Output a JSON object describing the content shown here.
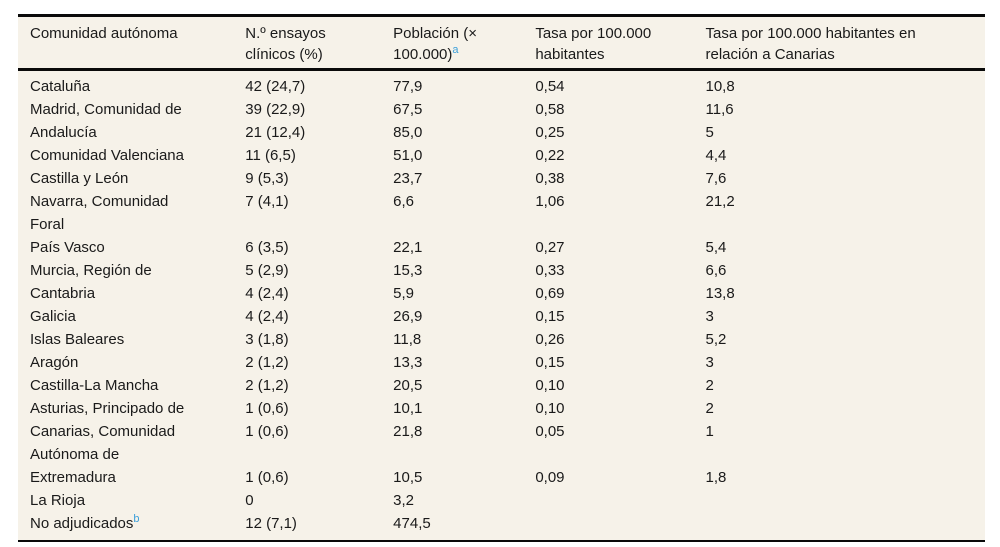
{
  "colors": {
    "table_background": "#f6f2e9",
    "border": "#0a0a0a",
    "text": "#1a1a1a",
    "footnote_link": "#3da0da"
  },
  "table": {
    "header": {
      "comunidad": "Comunidad autónoma",
      "ensayos": "N.º ensayos\nclínicos (%)",
      "poblacion": "Población (×\n100.000)",
      "poblacion_footnote": "a",
      "tasa": "Tasa por 100.000\nhabitantes",
      "tasa_canarias": "Tasa por 100.000 habitantes en\nrelación a Canarias"
    },
    "rows": [
      {
        "comunidad": "Cataluña",
        "footnote": "",
        "ensayos": "42 (24,7)",
        "poblacion": "77,9",
        "tasa": "0,54",
        "tasa_canarias": "10,8"
      },
      {
        "comunidad": "Madrid, Comunidad de",
        "footnote": "",
        "ensayos": "39 (22,9)",
        "poblacion": "67,5",
        "tasa": "0,58",
        "tasa_canarias": "11,6"
      },
      {
        "comunidad": "Andalucía",
        "footnote": "",
        "ensayos": "21 (12,4)",
        "poblacion": "85,0",
        "tasa": "0,25",
        "tasa_canarias": "5"
      },
      {
        "comunidad": "Comunidad Valenciana",
        "footnote": "",
        "ensayos": "11 (6,5)",
        "poblacion": "51,0",
        "tasa": "0,22",
        "tasa_canarias": "4,4"
      },
      {
        "comunidad": "Castilla y León",
        "footnote": "",
        "ensayos": "9 (5,3)",
        "poblacion": "23,7",
        "tasa": "0,38",
        "tasa_canarias": "7,6"
      },
      {
        "comunidad": "Navarra, Comunidad\nForal",
        "footnote": "",
        "ensayos": "7 (4,1)",
        "poblacion": "6,6",
        "tasa": "1,06",
        "tasa_canarias": "21,2"
      },
      {
        "comunidad": "País Vasco",
        "footnote": "",
        "ensayos": "6 (3,5)",
        "poblacion": "22,1",
        "tasa": "0,27",
        "tasa_canarias": "5,4"
      },
      {
        "comunidad": "Murcia, Región de",
        "footnote": "",
        "ensayos": "5 (2,9)",
        "poblacion": "15,3",
        "tasa": "0,33",
        "tasa_canarias": "6,6"
      },
      {
        "comunidad": "Cantabria",
        "footnote": "",
        "ensayos": "4 (2,4)",
        "poblacion": "5,9",
        "tasa": "0,69",
        "tasa_canarias": "13,8"
      },
      {
        "comunidad": "Galicia",
        "footnote": "",
        "ensayos": "4 (2,4)",
        "poblacion": "26,9",
        "tasa": "0,15",
        "tasa_canarias": "3"
      },
      {
        "comunidad": "Islas Baleares",
        "footnote": "",
        "ensayos": "3 (1,8)",
        "poblacion": "11,8",
        "tasa": "0,26",
        "tasa_canarias": "5,2"
      },
      {
        "comunidad": "Aragón",
        "footnote": "",
        "ensayos": "2 (1,2)",
        "poblacion": "13,3",
        "tasa": "0,15",
        "tasa_canarias": "3"
      },
      {
        "comunidad": "Castilla-La Mancha",
        "footnote": "",
        "ensayos": "2 (1,2)",
        "poblacion": "20,5",
        "tasa": "0,10",
        "tasa_canarias": "2"
      },
      {
        "comunidad": "Asturias, Principado de",
        "footnote": "",
        "ensayos": "1 (0,6)",
        "poblacion": "10,1",
        "tasa": "0,10",
        "tasa_canarias": "2"
      },
      {
        "comunidad": "Canarias, Comunidad\nAutónoma de",
        "footnote": "",
        "ensayos": "1 (0,6)",
        "poblacion": "21,8",
        "tasa": "0,05",
        "tasa_canarias": "1"
      },
      {
        "comunidad": "Extremadura",
        "footnote": "",
        "ensayos": "1 (0,6)",
        "poblacion": "10,5",
        "tasa": "0,09",
        "tasa_canarias": "1,8"
      },
      {
        "comunidad": "La Rioja",
        "footnote": "",
        "ensayos": "0",
        "poblacion": "3,2",
        "tasa": "",
        "tasa_canarias": ""
      },
      {
        "comunidad": "No adjudicados",
        "footnote": "b",
        "ensayos": "12 (7,1)",
        "poblacion": "474,5",
        "tasa": "",
        "tasa_canarias": ""
      }
    ]
  }
}
